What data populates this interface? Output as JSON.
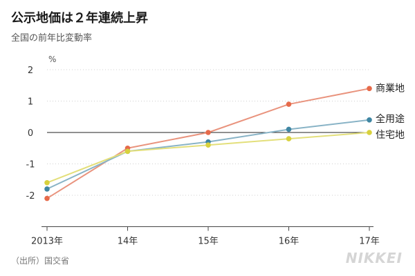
{
  "title": "公示地価は２年連続上昇",
  "subtitle": "全国の前年比変動率",
  "source": "（出所）国交省",
  "brand": "NIKKEI",
  "chart_data": {
    "type": "line",
    "title": "公示地価は２年連続上昇",
    "subtitle": "全国の前年比変動率",
    "ylabel": "%",
    "xlabel": "",
    "categories": [
      "2013年",
      "14年",
      "15年",
      "16年",
      "17年"
    ],
    "yticks": [
      2,
      1,
      0,
      -1,
      -2
    ],
    "ylim": [
      -3,
      2
    ],
    "grid": true,
    "legend": "right-end labels",
    "series": [
      {
        "name": "商業地",
        "color": "#e9937d",
        "marker": "#e66a4a",
        "values": [
          -2.1,
          -0.5,
          0.0,
          0.9,
          1.4
        ]
      },
      {
        "name": "全用途",
        "color": "#88b3c6",
        "marker": "#3f86a3",
        "values": [
          -1.8,
          -0.6,
          -0.3,
          0.1,
          0.4
        ]
      },
      {
        "name": "住宅地",
        "color": "#e3df7a",
        "marker": "#d8d13d",
        "values": [
          -1.6,
          -0.6,
          -0.4,
          -0.2,
          0.0
        ]
      }
    ]
  }
}
